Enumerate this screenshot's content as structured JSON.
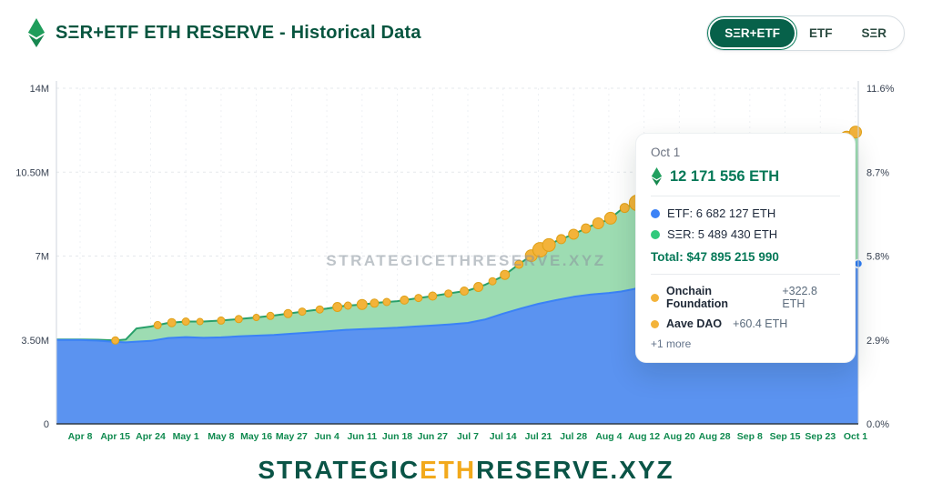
{
  "header": {
    "title": "SΞR+ETF ETH RESERVE - Historical Data",
    "toggle": {
      "options": [
        "SΞR+ETF",
        "ETF",
        "SΞR"
      ],
      "active": "SΞR+ETF"
    }
  },
  "watermark": "STRATEGICETHRESERVE.XYZ",
  "tooltip": {
    "date": "Oct 1",
    "headline": "12 171 556 ETH",
    "rows": [
      {
        "text": "ETF: 6 682 127 ETH",
        "dot_color": "#3b82f6"
      },
      {
        "text": "SΞR: 5 489 430 ETH",
        "dot_color": "#31c97c"
      }
    ],
    "total": "Total: $47 895 215 990",
    "events": [
      {
        "name": "Onchain Foundation",
        "delta": "+322.8 ETH"
      },
      {
        "name": "Aave DAO",
        "delta": "+60.4 ETH"
      }
    ],
    "more": "+1 more"
  },
  "footer": {
    "part1": "STRATEGIC",
    "part2": "ETH",
    "part3": "RESERVE",
    "part4": ".XYZ"
  },
  "colors": {
    "brand_green": "#07553f",
    "etf_fill": "#5b93f0",
    "etf_line": "#3b82f6",
    "ser_fill": "#9ddcb2",
    "ser_line": "#28a06a",
    "event_dot": "#f3b33a",
    "amber": "#f2a91b"
  },
  "chart_data": {
    "type": "area",
    "stacked": true,
    "title": "SΞR+ETF ETH RESERVE - Historical Data",
    "x_labels": [
      "Apr 8",
      "Apr 15",
      "Apr 24",
      "May 1",
      "May 8",
      "May 16",
      "May 27",
      "Jun 4",
      "Jun 11",
      "Jun 18",
      "Jun 27",
      "Jul 7",
      "Jul 14",
      "Jul 21",
      "Jul 28",
      "Aug 4",
      "Aug 12",
      "Aug 20",
      "Aug 28",
      "Sep 8",
      "Sep 15",
      "Sep 23",
      "Oct 1"
    ],
    "ylim_left": [
      0,
      14
    ],
    "ylim_right_pct": [
      0,
      11.6
    ],
    "y_axis_left": {
      "ticks": [
        {
          "v": 0,
          "label": "0"
        },
        {
          "v": 3.5,
          "label": "3.50M"
        },
        {
          "v": 7,
          "label": "7M"
        },
        {
          "v": 10.5,
          "label": "10.50M"
        },
        {
          "v": 14,
          "label": "14M"
        }
      ]
    },
    "y_axis_right": {
      "ticks": [
        {
          "v": 0,
          "label": "0.0%"
        },
        {
          "v": 3.5,
          "label": "2.9%"
        },
        {
          "v": 7,
          "label": "5.8%"
        },
        {
          "v": 10.5,
          "label": "8.7%"
        },
        {
          "v": 14,
          "label": "11.6%"
        }
      ]
    },
    "series": [
      {
        "name": "ETF",
        "fill": "#5b93f0",
        "line": "#3b82f6"
      },
      {
        "name": "SΞR",
        "fill": "#9ddcb2",
        "line": "#28a06a"
      }
    ],
    "points_note": "each point = [x index on date axis, ETF millions ETH, SER millions ETH]",
    "points": [
      [
        0,
        3.5,
        0.02
      ],
      [
        0.5,
        3.47,
        0.04
      ],
      [
        1,
        3.42,
        0.06
      ],
      [
        1.3,
        3.4,
        0.12
      ],
      [
        1.6,
        3.43,
        0.55
      ],
      [
        2,
        3.46,
        0.6
      ],
      [
        2.5,
        3.58,
        0.63
      ],
      [
        3,
        3.62,
        0.65
      ],
      [
        3.5,
        3.59,
        0.68
      ],
      [
        4,
        3.61,
        0.7
      ],
      [
        4.5,
        3.65,
        0.72
      ],
      [
        5,
        3.68,
        0.76
      ],
      [
        5.5,
        3.71,
        0.81
      ],
      [
        6,
        3.76,
        0.86
      ],
      [
        6.5,
        3.81,
        0.91
      ],
      [
        7,
        3.86,
        0.95
      ],
      [
        7.5,
        3.92,
        1.0
      ],
      [
        8,
        3.95,
        1.03
      ],
      [
        8.5,
        3.98,
        1.08
      ],
      [
        9,
        4.01,
        1.11
      ],
      [
        9.5,
        4.06,
        1.17
      ],
      [
        10,
        4.1,
        1.23
      ],
      [
        10.5,
        4.15,
        1.3
      ],
      [
        11,
        4.21,
        1.35
      ],
      [
        11.5,
        4.36,
        1.45
      ],
      [
        12,
        4.6,
        1.56
      ],
      [
        12.5,
        4.81,
        1.9
      ],
      [
        13,
        5.01,
        2.21
      ],
      [
        13.5,
        5.16,
        2.46
      ],
      [
        14,
        5.3,
        2.61
      ],
      [
        14.5,
        5.4,
        2.86
      ],
      [
        15,
        5.46,
        3.06
      ],
      [
        15.35,
        5.52,
        3.42
      ],
      [
        15.7,
        5.62,
        3.55
      ],
      [
        16,
        5.76,
        3.56
      ],
      [
        16.5,
        5.86,
        3.7
      ],
      [
        17,
        5.95,
        3.81
      ],
      [
        17.5,
        6.0,
        3.9
      ],
      [
        18,
        6.06,
        3.96
      ],
      [
        18.5,
        6.1,
        4.06
      ],
      [
        19,
        6.16,
        4.16
      ],
      [
        19.5,
        6.21,
        4.31
      ],
      [
        20,
        6.26,
        4.46
      ],
      [
        20.5,
        6.36,
        4.66
      ],
      [
        21,
        6.46,
        4.86
      ],
      [
        21.5,
        6.56,
        5.16
      ],
      [
        22,
        6.68,
        5.49
      ]
    ],
    "events_note": "purchase-event dots on total line: [x index, radius px]",
    "events": [
      [
        1,
        4
      ],
      [
        2.2,
        4
      ],
      [
        2.6,
        4.5
      ],
      [
        3.0,
        4
      ],
      [
        3.4,
        3.5
      ],
      [
        4.0,
        4
      ],
      [
        4.5,
        4
      ],
      [
        5.0,
        3.5
      ],
      [
        5.4,
        4
      ],
      [
        5.9,
        4.5
      ],
      [
        6.3,
        4
      ],
      [
        6.8,
        4
      ],
      [
        7.3,
        5
      ],
      [
        7.6,
        4
      ],
      [
        8.0,
        5.5
      ],
      [
        8.35,
        4.5
      ],
      [
        8.7,
        4
      ],
      [
        9.2,
        4.5
      ],
      [
        9.6,
        4
      ],
      [
        10.0,
        4.5
      ],
      [
        10.45,
        4
      ],
      [
        10.9,
        4.5
      ],
      [
        11.3,
        5
      ],
      [
        11.7,
        4
      ],
      [
        12.05,
        5
      ],
      [
        12.45,
        4.5
      ],
      [
        12.8,
        6.5
      ],
      [
        13.05,
        8
      ],
      [
        13.3,
        7
      ],
      [
        13.65,
        5
      ],
      [
        14.0,
        5.5
      ],
      [
        14.35,
        5
      ],
      [
        14.7,
        6
      ],
      [
        15.05,
        6.5
      ],
      [
        15.45,
        5
      ],
      [
        15.8,
        8.5
      ],
      [
        16.15,
        6
      ],
      [
        16.55,
        5
      ],
      [
        17.0,
        4.5
      ],
      [
        18.0,
        4
      ],
      [
        19.0,
        4.5
      ],
      [
        20.5,
        5
      ],
      [
        21.0,
        5.5
      ],
      [
        21.4,
        6
      ],
      [
        21.75,
        7
      ],
      [
        22.0,
        6.5
      ]
    ],
    "last_point": {
      "series": "ETF",
      "x": 22,
      "value": 6.682127
    }
  }
}
